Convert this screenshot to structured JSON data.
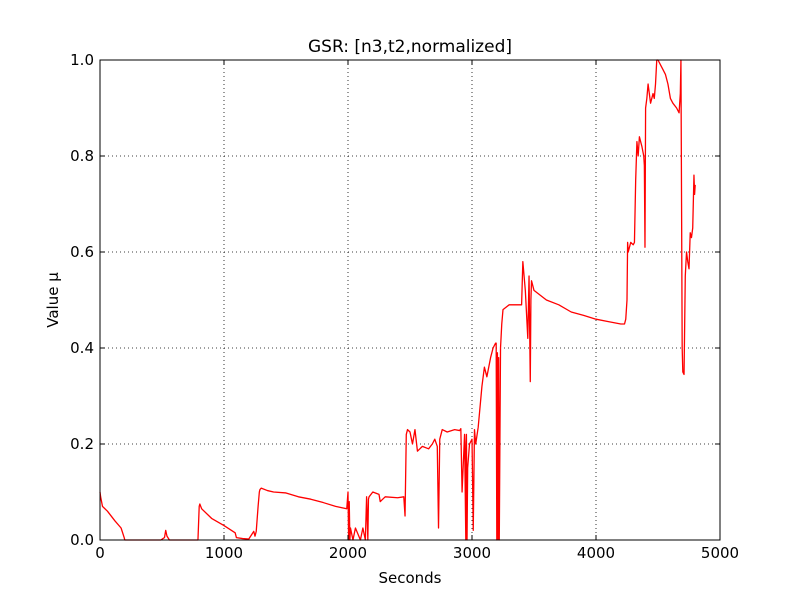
{
  "chart_data": {
    "type": "line",
    "title": "GSR: [n3,t2,normalized]",
    "xlabel": "Seconds",
    "ylabel": "Value µ",
    "xlim": [
      0,
      5000
    ],
    "ylim": [
      0.0,
      1.0
    ],
    "xticks": [
      0,
      1000,
      2000,
      3000,
      4000,
      5000
    ],
    "xtick_labels": [
      "0",
      "1000",
      "2000",
      "3000",
      "4000",
      "5000"
    ],
    "yticks": [
      0.0,
      0.2,
      0.4,
      0.6,
      0.8,
      1.0
    ],
    "ytick_labels": [
      "0.0",
      "0.2",
      "0.4",
      "0.6",
      "0.8",
      "1.0"
    ],
    "grid": true,
    "series": [
      {
        "color": "#ff0000",
        "x": [
          0,
          5,
          20,
          60,
          120,
          170,
          195,
          200,
          300,
          400,
          490,
          520,
          530,
          540,
          560,
          600,
          700,
          790,
          800,
          805,
          820,
          900,
          1000,
          1090,
          1100,
          1150,
          1200,
          1240,
          1250,
          1260,
          1275,
          1285,
          1290,
          1300,
          1350,
          1400,
          1500,
          1600,
          1700,
          1800,
          1900,
          1990,
          2000,
          2005,
          2010,
          2015,
          2020,
          2040,
          2060,
          2100,
          2120,
          2140,
          2150,
          2160,
          2165,
          2170,
          2200,
          2250,
          2260,
          2280,
          2300,
          2400,
          2450,
          2460,
          2470,
          2480,
          2500,
          2520,
          2540,
          2560,
          2600,
          2650,
          2680,
          2700,
          2720,
          2730,
          2740,
          2760,
          2800,
          2860,
          2900,
          2910,
          2920,
          2940,
          2950,
          2952,
          2955,
          2958,
          2960,
          2965,
          2980,
          3000,
          3010,
          3020,
          3030,
          3050,
          3080,
          3100,
          3120,
          3150,
          3170,
          3190,
          3195,
          3200,
          3205,
          3210,
          3215,
          3220,
          3230,
          3240,
          3250,
          3300,
          3350,
          3380,
          3400,
          3410,
          3420,
          3430,
          3450,
          3460,
          3470,
          3475,
          3480,
          3490,
          3500,
          3600,
          3700,
          3800,
          3900,
          4000,
          4100,
          4200,
          4230,
          4240,
          4250,
          4255,
          4260,
          4280,
          4300,
          4310,
          4320,
          4330,
          4340,
          4350,
          4370,
          4385,
          4390,
          4395,
          4400,
          4410,
          4420,
          4440,
          4460,
          4470,
          4480,
          4490,
          4500,
          4520,
          4540,
          4560,
          4580,
          4600,
          4620,
          4650,
          4670,
          4680,
          4685,
          4690,
          4695,
          4700,
          4710,
          4720,
          4730,
          4740,
          4750,
          4760,
          4770,
          4780,
          4790,
          4795,
          4800
        ],
        "y": [
          0.1,
          0.09,
          0.07,
          0.06,
          0.04,
          0.025,
          0.005,
          0.0,
          0.0,
          0.0,
          0.0,
          0.005,
          0.02,
          0.008,
          0.0,
          0.0,
          0.0,
          0.0,
          0.07,
          0.075,
          0.065,
          0.045,
          0.03,
          0.015,
          0.005,
          0.003,
          0.002,
          0.018,
          0.008,
          0.018,
          0.07,
          0.1,
          0.105,
          0.108,
          0.103,
          0.1,
          0.098,
          0.09,
          0.085,
          0.078,
          0.07,
          0.065,
          0.1,
          0.0,
          0.08,
          0.0,
          0.025,
          0.0,
          0.025,
          0.0,
          0.025,
          0.0,
          0.09,
          0.0,
          0.085,
          0.09,
          0.1,
          0.095,
          0.08,
          0.085,
          0.09,
          0.088,
          0.09,
          0.05,
          0.22,
          0.23,
          0.225,
          0.2,
          0.23,
          0.185,
          0.195,
          0.19,
          0.2,
          0.21,
          0.195,
          0.025,
          0.21,
          0.23,
          0.225,
          0.23,
          0.228,
          0.232,
          0.1,
          0.22,
          0.0,
          0.2,
          0.22,
          0.11,
          0.0,
          0.15,
          0.2,
          0.21,
          0.02,
          0.23,
          0.2,
          0.235,
          0.32,
          0.36,
          0.34,
          0.38,
          0.4,
          0.41,
          0.41,
          0.0,
          0.39,
          0.0,
          0.38,
          0.0,
          0.4,
          0.45,
          0.48,
          0.49,
          0.49,
          0.49,
          0.49,
          0.58,
          0.55,
          0.52,
          0.42,
          0.55,
          0.33,
          0.5,
          0.54,
          0.53,
          0.52,
          0.5,
          0.49,
          0.475,
          0.468,
          0.46,
          0.455,
          0.45,
          0.45,
          0.46,
          0.5,
          0.62,
          0.6,
          0.62,
          0.615,
          0.62,
          0.75,
          0.83,
          0.8,
          0.84,
          0.82,
          0.8,
          0.78,
          0.61,
          0.9,
          0.92,
          0.95,
          0.91,
          0.93,
          0.92,
          0.95,
          1.0,
          1.0,
          0.99,
          0.98,
          0.97,
          0.95,
          0.92,
          0.91,
          0.9,
          0.89,
          0.93,
          1.0,
          0.7,
          0.4,
          0.35,
          0.345,
          0.55,
          0.6,
          0.58,
          0.565,
          0.64,
          0.63,
          0.65,
          0.76,
          0.72,
          0.74
        ]
      }
    ]
  }
}
